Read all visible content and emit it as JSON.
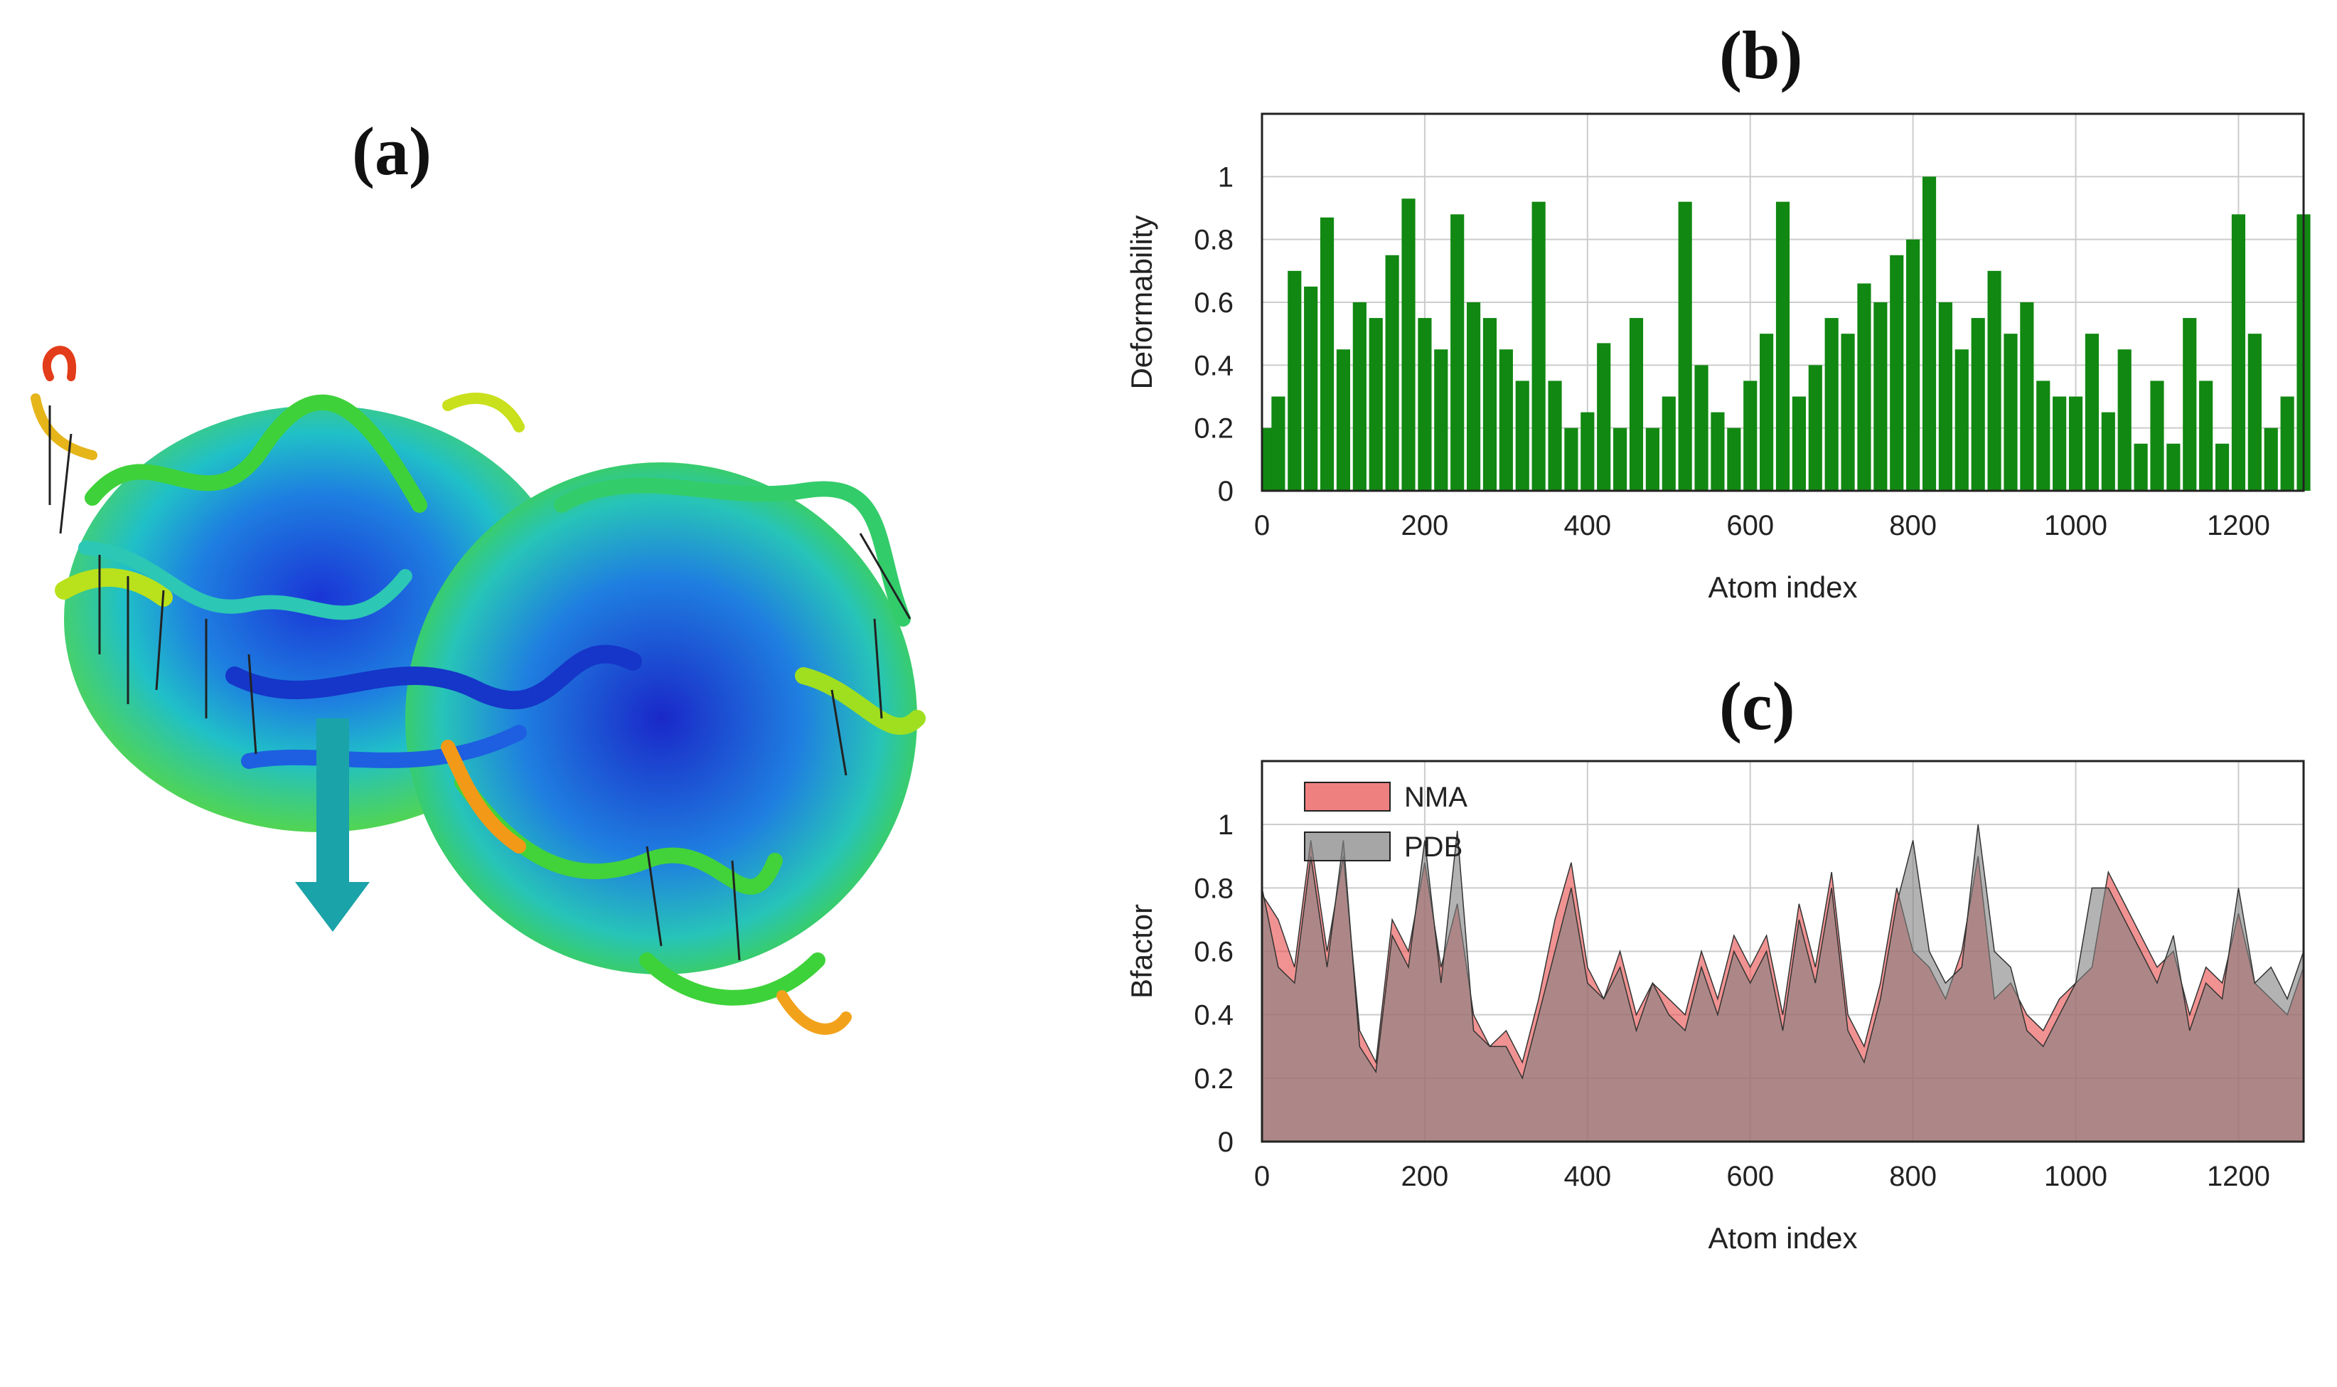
{
  "panels": {
    "a": "(a)",
    "b": "(b)",
    "c": "(c)"
  },
  "colors": {
    "deformability": "#118811",
    "nma_fill": "#e84a4a",
    "pdb_fill": "#808080",
    "overlap": "#a44848",
    "grid": "#cccccc",
    "arrow": "#1aa3a8"
  },
  "chart_data": [
    {
      "type": "bar",
      "panel": "(b)",
      "title": "",
      "xlabel": "Atom index",
      "ylabel": "Deformability",
      "xlim": [
        0,
        1280
      ],
      "ylim": [
        0,
        1.2
      ],
      "xticks": [
        0,
        200,
        400,
        600,
        800,
        1000,
        1200
      ],
      "yticks": [
        0,
        0.2,
        0.4,
        0.6,
        0.8,
        1
      ],
      "grid": true,
      "x": [
        0,
        20,
        40,
        60,
        80,
        100,
        120,
        140,
        160,
        180,
        200,
        220,
        240,
        260,
        280,
        300,
        320,
        340,
        360,
        380,
        400,
        420,
        440,
        460,
        480,
        500,
        520,
        540,
        560,
        580,
        600,
        620,
        640,
        660,
        680,
        700,
        720,
        740,
        760,
        780,
        800,
        820,
        840,
        860,
        880,
        900,
        920,
        940,
        960,
        980,
        1000,
        1020,
        1040,
        1060,
        1080,
        1100,
        1120,
        1140,
        1160,
        1180,
        1200,
        1220,
        1240,
        1260,
        1280
      ],
      "values": [
        0.2,
        0.3,
        0.7,
        0.65,
        0.87,
        0.45,
        0.6,
        0.55,
        0.75,
        0.93,
        0.55,
        0.45,
        0.88,
        0.6,
        0.55,
        0.45,
        0.35,
        0.92,
        0.35,
        0.2,
        0.25,
        0.47,
        0.2,
        0.55,
        0.2,
        0.3,
        0.92,
        0.4,
        0.25,
        0.2,
        0.35,
        0.5,
        0.92,
        0.3,
        0.4,
        0.55,
        0.5,
        0.66,
        0.6,
        0.75,
        0.8,
        1.0,
        0.6,
        0.45,
        0.55,
        0.7,
        0.5,
        0.6,
        0.35,
        0.3,
        0.3,
        0.5,
        0.25,
        0.45,
        0.15,
        0.35,
        0.15,
        0.55,
        0.35,
        0.15,
        0.88,
        0.5,
        0.2,
        0.3,
        0.88
      ]
    },
    {
      "type": "area",
      "panel": "(c)",
      "title": "",
      "xlabel": "Atom index",
      "ylabel": "Bfactor",
      "xlim": [
        0,
        1280
      ],
      "ylim": [
        0,
        1.2
      ],
      "xticks": [
        0,
        200,
        400,
        600,
        800,
        1000,
        1200
      ],
      "yticks": [
        0,
        0.2,
        0.4,
        0.6,
        0.8,
        1
      ],
      "grid": true,
      "legend_position": "top-left",
      "x": [
        0,
        20,
        40,
        60,
        80,
        100,
        120,
        140,
        160,
        180,
        200,
        220,
        240,
        260,
        280,
        300,
        320,
        340,
        360,
        380,
        400,
        420,
        440,
        460,
        480,
        500,
        520,
        540,
        560,
        580,
        600,
        620,
        640,
        660,
        680,
        700,
        720,
        740,
        760,
        780,
        800,
        820,
        840,
        860,
        880,
        900,
        920,
        940,
        960,
        980,
        1000,
        1020,
        1040,
        1060,
        1080,
        1100,
        1120,
        1140,
        1160,
        1180,
        1200,
        1220,
        1240,
        1260,
        1280
      ],
      "series": [
        {
          "name": "NMA",
          "values": [
            0.78,
            0.7,
            0.55,
            0.95,
            0.6,
            0.9,
            0.35,
            0.25,
            0.7,
            0.6,
            0.88,
            0.55,
            0.75,
            0.4,
            0.3,
            0.35,
            0.25,
            0.45,
            0.7,
            0.88,
            0.55,
            0.45,
            0.6,
            0.4,
            0.5,
            0.45,
            0.4,
            0.6,
            0.45,
            0.65,
            0.55,
            0.65,
            0.4,
            0.75,
            0.55,
            0.85,
            0.4,
            0.3,
            0.5,
            0.8,
            0.6,
            0.55,
            0.45,
            0.6,
            0.9,
            0.45,
            0.5,
            0.4,
            0.35,
            0.45,
            0.5,
            0.55,
            0.85,
            0.75,
            0.65,
            0.55,
            0.6,
            0.4,
            0.55,
            0.5,
            0.72,
            0.5,
            0.45,
            0.4,
            0.55
          ]
        },
        {
          "name": "PDB",
          "values": [
            0.8,
            0.55,
            0.5,
            0.9,
            0.55,
            0.95,
            0.3,
            0.22,
            0.65,
            0.55,
            0.95,
            0.5,
            0.98,
            0.35,
            0.3,
            0.3,
            0.2,
            0.4,
            0.6,
            0.8,
            0.5,
            0.45,
            0.55,
            0.35,
            0.5,
            0.4,
            0.35,
            0.55,
            0.4,
            0.6,
            0.5,
            0.6,
            0.35,
            0.7,
            0.5,
            0.8,
            0.35,
            0.25,
            0.45,
            0.75,
            0.95,
            0.6,
            0.5,
            0.55,
            1.0,
            0.6,
            0.55,
            0.35,
            0.3,
            0.4,
            0.5,
            0.8,
            0.8,
            0.7,
            0.6,
            0.5,
            0.65,
            0.35,
            0.5,
            0.45,
            0.8,
            0.5,
            0.55,
            0.45,
            0.6
          ]
        }
      ]
    }
  ]
}
